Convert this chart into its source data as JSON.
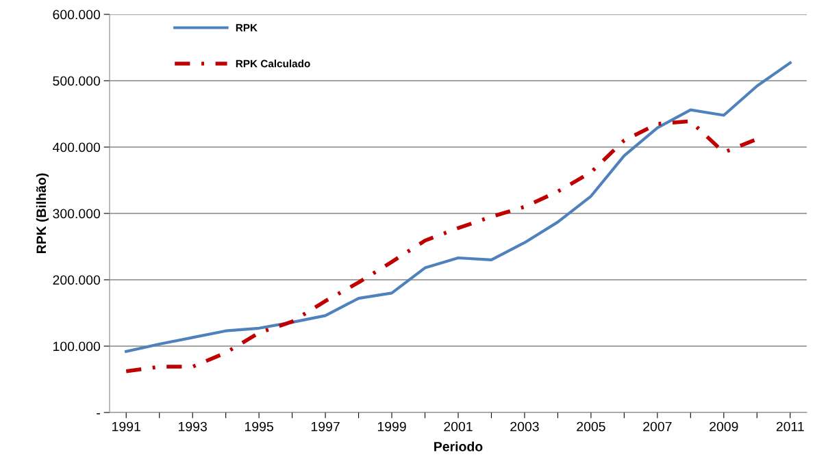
{
  "chart_data": {
    "type": "line",
    "xlabel": "Periodo",
    "ylabel": "RPK (Bilhão)",
    "categories": [
      "1991",
      null,
      "1993",
      null,
      "1995",
      null,
      "1997",
      null,
      "1999",
      null,
      "2001",
      null,
      "2003",
      null,
      "2005",
      null,
      "2007",
      null,
      "2009",
      null,
      "2011"
    ],
    "series": [
      {
        "name": "RPK",
        "color": "#4f81bd",
        "line_style": "solid",
        "values": [
          92000,
          103000,
          113000,
          123000,
          127000,
          136000,
          146000,
          172000,
          180000,
          218000,
          233000,
          230000,
          256000,
          287000,
          326000,
          387000,
          429000,
          456000,
          448000,
          492000,
          527000
        ]
      },
      {
        "name": "RPK Calculado",
        "color": "#c00000",
        "line_style": "dashdot",
        "values": [
          62000,
          69000,
          69000,
          90000,
          120000,
          137000,
          168000,
          196000,
          227000,
          259000,
          278000,
          295000,
          310000,
          333000,
          362000,
          410000,
          435000,
          439000,
          392000,
          412000,
          null
        ]
      }
    ],
    "ylim": [
      0,
      600000
    ],
    "yticks": [
      {
        "value": 0,
        "label": "-"
      },
      {
        "value": 100000,
        "label": "100.000"
      },
      {
        "value": 200000,
        "label": "200.000"
      },
      {
        "value": 300000,
        "label": "300.000"
      },
      {
        "value": 400000,
        "label": "400.000"
      },
      {
        "value": 500000,
        "label": "500.000"
      },
      {
        "value": 600000,
        "label": "600.000"
      }
    ],
    "grid": "y",
    "legend": "top left",
    "marker": "none"
  }
}
